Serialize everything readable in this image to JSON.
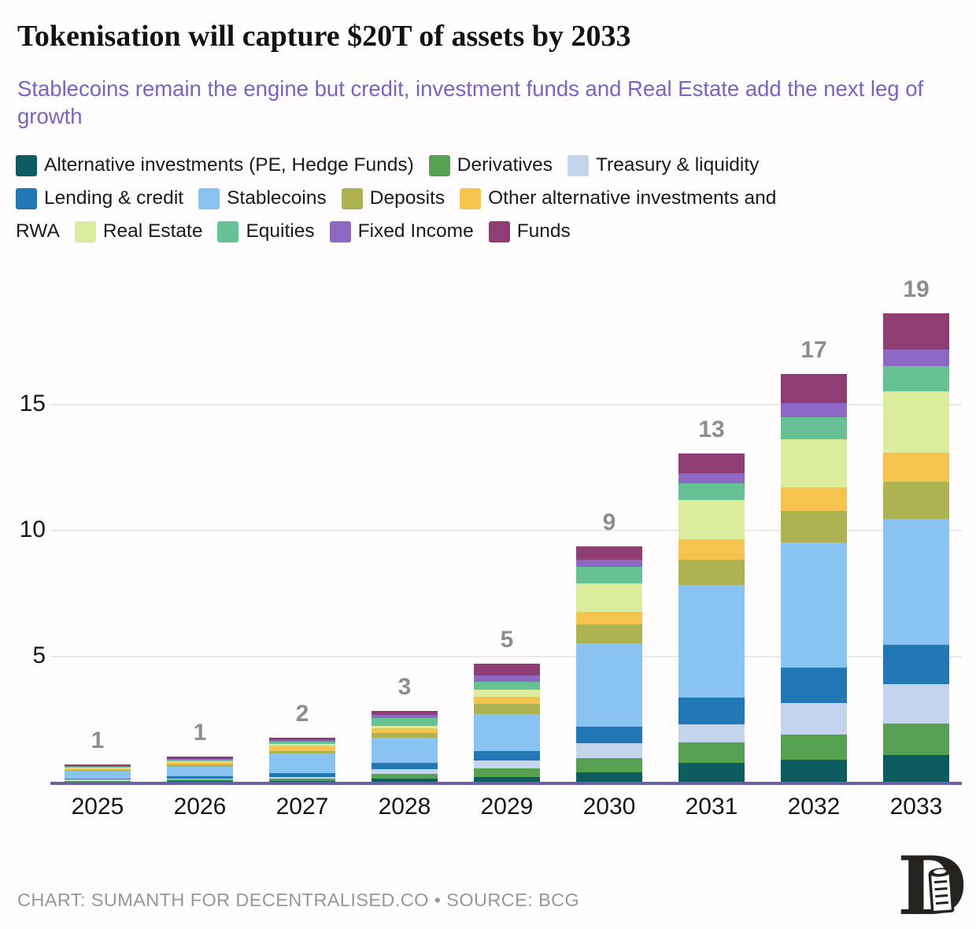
{
  "title": "Tokenisation will capture $20T of assets by 2033",
  "subtitle": "Stablecoins remain the engine but credit, investment funds and Real Estate add the next leg of growth",
  "footer": "CHART: SUMANTH FOR DECENTRALISED.CO • SOURCE: BCG",
  "colors": {
    "subtitle_accent": "#7b62c8",
    "value_label": "#8d8d8d",
    "axis_line": "#6f5fa5",
    "gridline": "#e9e9e9",
    "footer_text": "#97969e"
  },
  "chart_data": {
    "type": "bar",
    "stacked": true,
    "title": "Tokenisation will capture $20T of assets by 2033",
    "xlabel": "",
    "ylabel": "",
    "units": "$T",
    "categories": [
      "2025",
      "2026",
      "2027",
      "2028",
      "2029",
      "2030",
      "2031",
      "2032",
      "2033"
    ],
    "totals_labels": [
      "1",
      "1",
      "2",
      "3",
      "5",
      "9",
      "13",
      "17",
      "19"
    ],
    "yticks": [
      5,
      10,
      15
    ],
    "ylim": [
      0,
      20
    ],
    "grid": "horizontal",
    "legend_position": "top",
    "series": [
      {
        "name": "Alternative investments (PE, Hedge Funds)",
        "color": "#0b5d60",
        "values": [
          0.03,
          0.05,
          0.05,
          0.15,
          0.22,
          0.41,
          0.78,
          0.9,
          1.1
        ]
      },
      {
        "name": "Derivatives",
        "color": "#57a153",
        "values": [
          0.04,
          0.06,
          0.1,
          0.18,
          0.34,
          0.56,
          0.81,
          1.0,
          1.25
        ]
      },
      {
        "name": "Treasury & liquidity",
        "color": "#c3d4ec",
        "values": [
          0.04,
          0.05,
          0.06,
          0.2,
          0.31,
          0.59,
          0.71,
          1.25,
          1.56
        ]
      },
      {
        "name": "Lending & credit",
        "color": "#2277b5",
        "values": [
          0.06,
          0.08,
          0.15,
          0.25,
          0.37,
          0.66,
          1.09,
          1.4,
          1.56
        ]
      },
      {
        "name": "Stablecoins",
        "color": "#88c3f2",
        "values": [
          0.3,
          0.4,
          0.8,
          1.0,
          1.47,
          3.3,
          4.45,
          4.97,
          5.0
        ]
      },
      {
        "name": "Deposits",
        "color": "#adb350",
        "values": [
          0.04,
          0.07,
          0.1,
          0.18,
          0.4,
          0.75,
          1.0,
          1.25,
          1.48
        ]
      },
      {
        "name": "Other alternative investments and RWA",
        "color": "#f4c44f",
        "values": [
          0.06,
          0.09,
          0.2,
          0.19,
          0.31,
          0.5,
          0.81,
          0.94,
          1.15
        ]
      },
      {
        "name": "Real Estate",
        "color": "#dbed9d",
        "values": [
          0.03,
          0.04,
          0.07,
          0.1,
          0.26,
          1.13,
          1.56,
          1.9,
          2.43
        ]
      },
      {
        "name": "Equities",
        "color": "#66c194",
        "values": [
          0.04,
          0.06,
          0.1,
          0.3,
          0.31,
          0.66,
          0.66,
          0.9,
          1.0
        ]
      },
      {
        "name": "Fixed Income",
        "color": "#8d68c4",
        "values": [
          0.02,
          0.04,
          0.05,
          0.13,
          0.26,
          0.28,
          0.41,
          0.56,
          0.65
        ]
      },
      {
        "name": "Funds",
        "color": "#8e3e72",
        "values": [
          0.06,
          0.09,
          0.09,
          0.17,
          0.47,
          0.53,
          0.78,
          1.16,
          1.45
        ]
      }
    ]
  }
}
